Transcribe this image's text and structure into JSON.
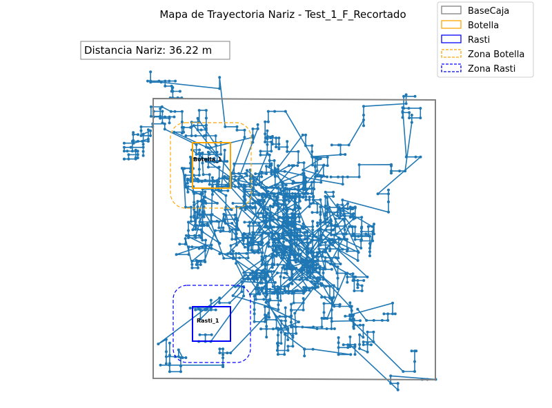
{
  "chart_data": {
    "type": "scatter",
    "title": "Mapa de Trayectoria Nariz - Test_1_F_Recortado",
    "annotation": "Distancia Nariz: 36.22 m",
    "axes_visible": false,
    "grid": false,
    "legend_position": "top-right",
    "legend": [
      {
        "label": "BaseCaja",
        "color": "#808080",
        "style": "solid"
      },
      {
        "label": "Botella",
        "color": "#ffa500",
        "style": "solid"
      },
      {
        "label": "Rasti",
        "color": "#0000ff",
        "style": "solid"
      },
      {
        "label": "Zona Botella",
        "color": "#ffa500",
        "style": "dashed"
      },
      {
        "label": "Zona Rasti",
        "color": "#0000ff",
        "style": "dashed"
      }
    ],
    "objects": [
      {
        "name": "Botella_1",
        "type": "Botella"
      },
      {
        "name": "Rasti_1",
        "type": "Rasti"
      }
    ],
    "trajectory_color": "#1f77b4"
  }
}
